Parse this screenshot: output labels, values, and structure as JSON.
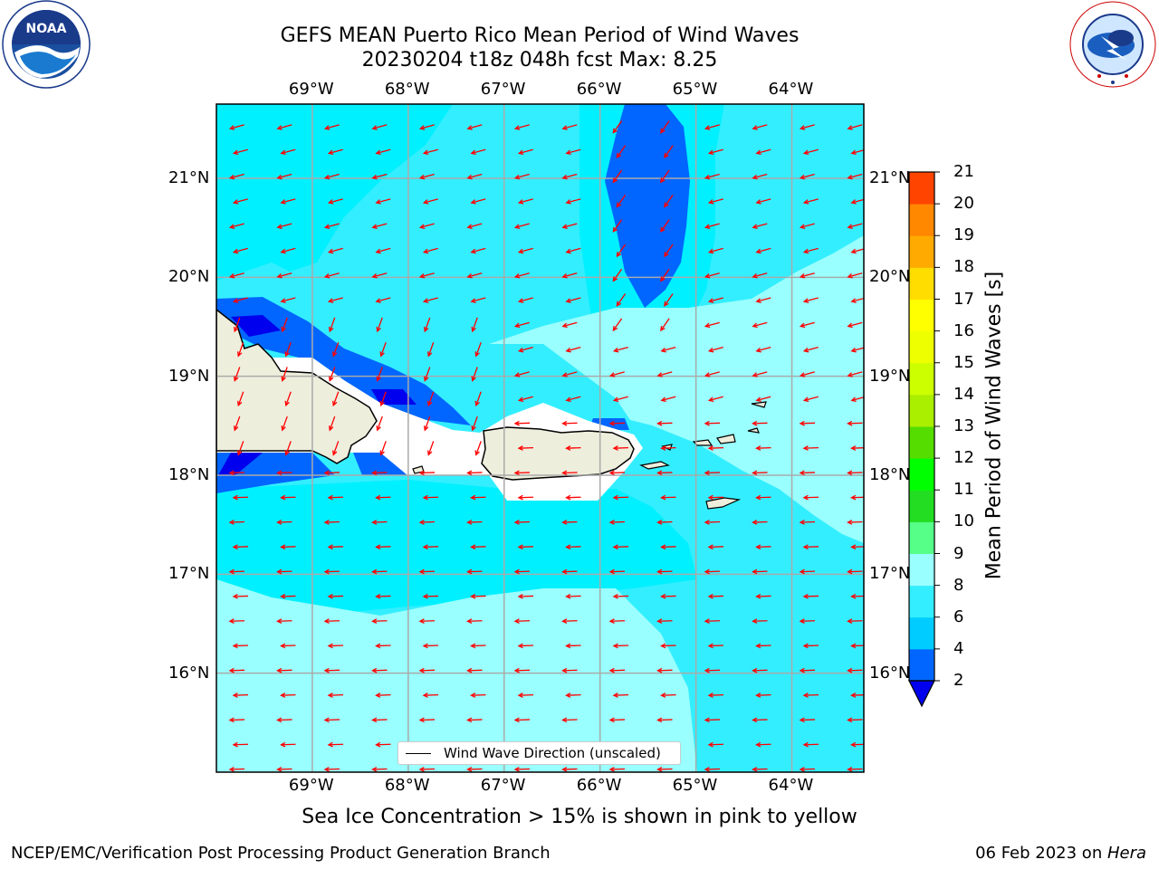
{
  "title": {
    "line1": "GEFS MEAN Puerto Rico Mean Period of Wind Waves",
    "line2": "20230204 t18z 048h fcst   Max: 8.25"
  },
  "logos": {
    "left": {
      "icon": "noaa-logo-icon",
      "text": "NOAA",
      "ring_text": "NATIONAL OCEANIC AND ATMOSPHERIC ADMINISTRATION · U.S. DEPARTMENT OF COMMERCE"
    },
    "right": {
      "icon": "nws-logo-icon",
      "ring_text": "NATIONAL WEATHER SERVICE"
    }
  },
  "map": {
    "lon_labels": [
      "69°W",
      "68°W",
      "67°W",
      "66°W",
      "65°W",
      "64°W"
    ],
    "lat_labels": [
      "21°N",
      "20°N",
      "19°N",
      "18°N",
      "17°N",
      "16°N"
    ],
    "lon_range": [
      -70.0,
      -63.25
    ],
    "lat_range": [
      15.0,
      21.75
    ],
    "grid": true,
    "vector_color": "#ff0000",
    "land_color": "#eeeedd",
    "legend": {
      "label": "Wind Wave Direction (unscaled)",
      "position": "lower-center"
    }
  },
  "colorbar": {
    "title": "Mean Period of Wind Waves [s]",
    "ticks": [
      "2",
      "4",
      "6",
      "8",
      "9",
      "10",
      "11",
      "12",
      "13",
      "14",
      "15",
      "16",
      "17",
      "18",
      "19",
      "20",
      "21"
    ],
    "colors": [
      "#0066ff",
      "#00ccff",
      "#33eeff",
      "#99ffff",
      "#55ff88",
      "#22dd22",
      "#00ff00",
      "#55dd00",
      "#aaee00",
      "#ccff00",
      "#eeff00",
      "#ffff00",
      "#ffdd00",
      "#ffaa00",
      "#ff8800",
      "#ff4400",
      "#ff2200",
      "#ff0000"
    ],
    "under_color": "#0000ee"
  },
  "notes": {
    "sea_ice": "Sea Ice Concentration > 15% is shown in pink to yellow",
    "producer": "NCEP/EMC/Verification Post Processing Product Generation Branch",
    "date": "06 Feb 2023 on ",
    "machine": "Hera"
  }
}
